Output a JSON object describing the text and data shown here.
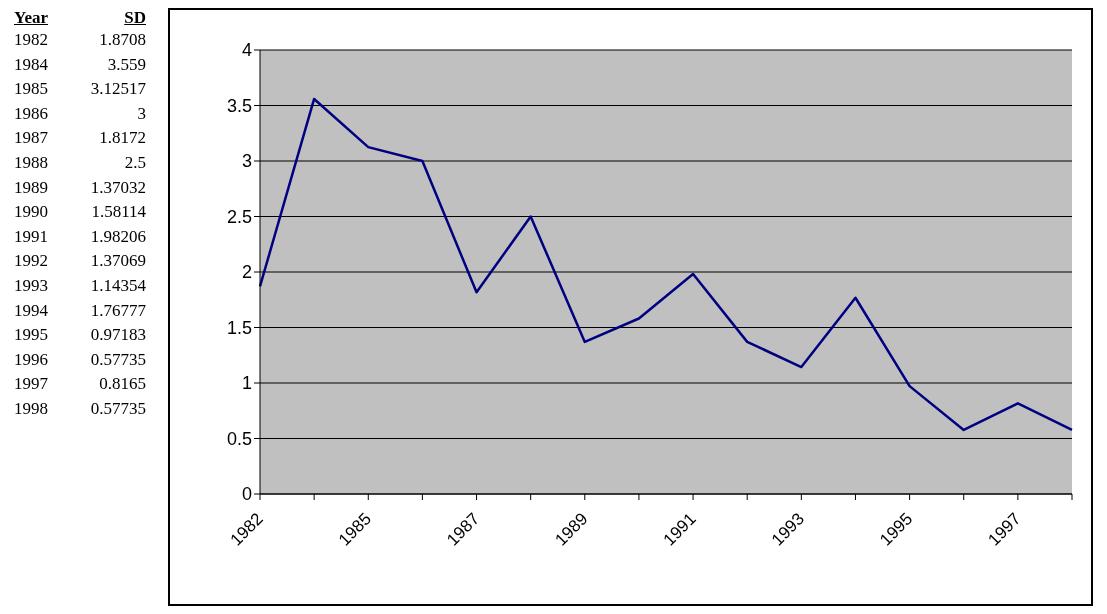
{
  "chart_data": {
    "type": "line",
    "annotations": [
      "Year",
      "SD",
      "1982",
      "1984",
      "1985",
      "1986",
      "1987",
      "1988",
      "1989",
      "1990",
      "1991",
      "1992",
      "1993",
      "1994",
      "1995",
      "1996",
      "1997",
      "1998"
    ],
    "categories": [
      "1982",
      null,
      "1985",
      null,
      "1987",
      null,
      "1989",
      null,
      "1991",
      null,
      "1993",
      null,
      "1995",
      null,
      "1997",
      null
    ],
    "series": [
      {
        "color": "#000080",
        "values": [
          1.8708,
          3.559,
          3.12517,
          3,
          1.8172,
          2.5,
          1.37032,
          1.58114,
          1.98206,
          1.37069,
          1.14354,
          1.76777,
          0.97183,
          0.57735,
          0.8165,
          0.57735
        ]
      }
    ],
    "value_labels": [
      "1.8708",
      "3.559",
      "3.12517",
      "3",
      "1.8172",
      "2.5",
      "1.37032",
      "1.58114",
      "1.98206",
      "1.37069",
      "1.14354",
      "1.76777",
      "0.97183",
      "0.57735",
      "0.8165",
      "0.57735"
    ],
    "ylim": [
      0,
      4
    ],
    "yticks": [
      0,
      0.5,
      1,
      1.5,
      2,
      2.5,
      3,
      3.5,
      4
    ],
    "grid": "y",
    "marker": "none",
    "line_style": "solid",
    "legend": false
  }
}
